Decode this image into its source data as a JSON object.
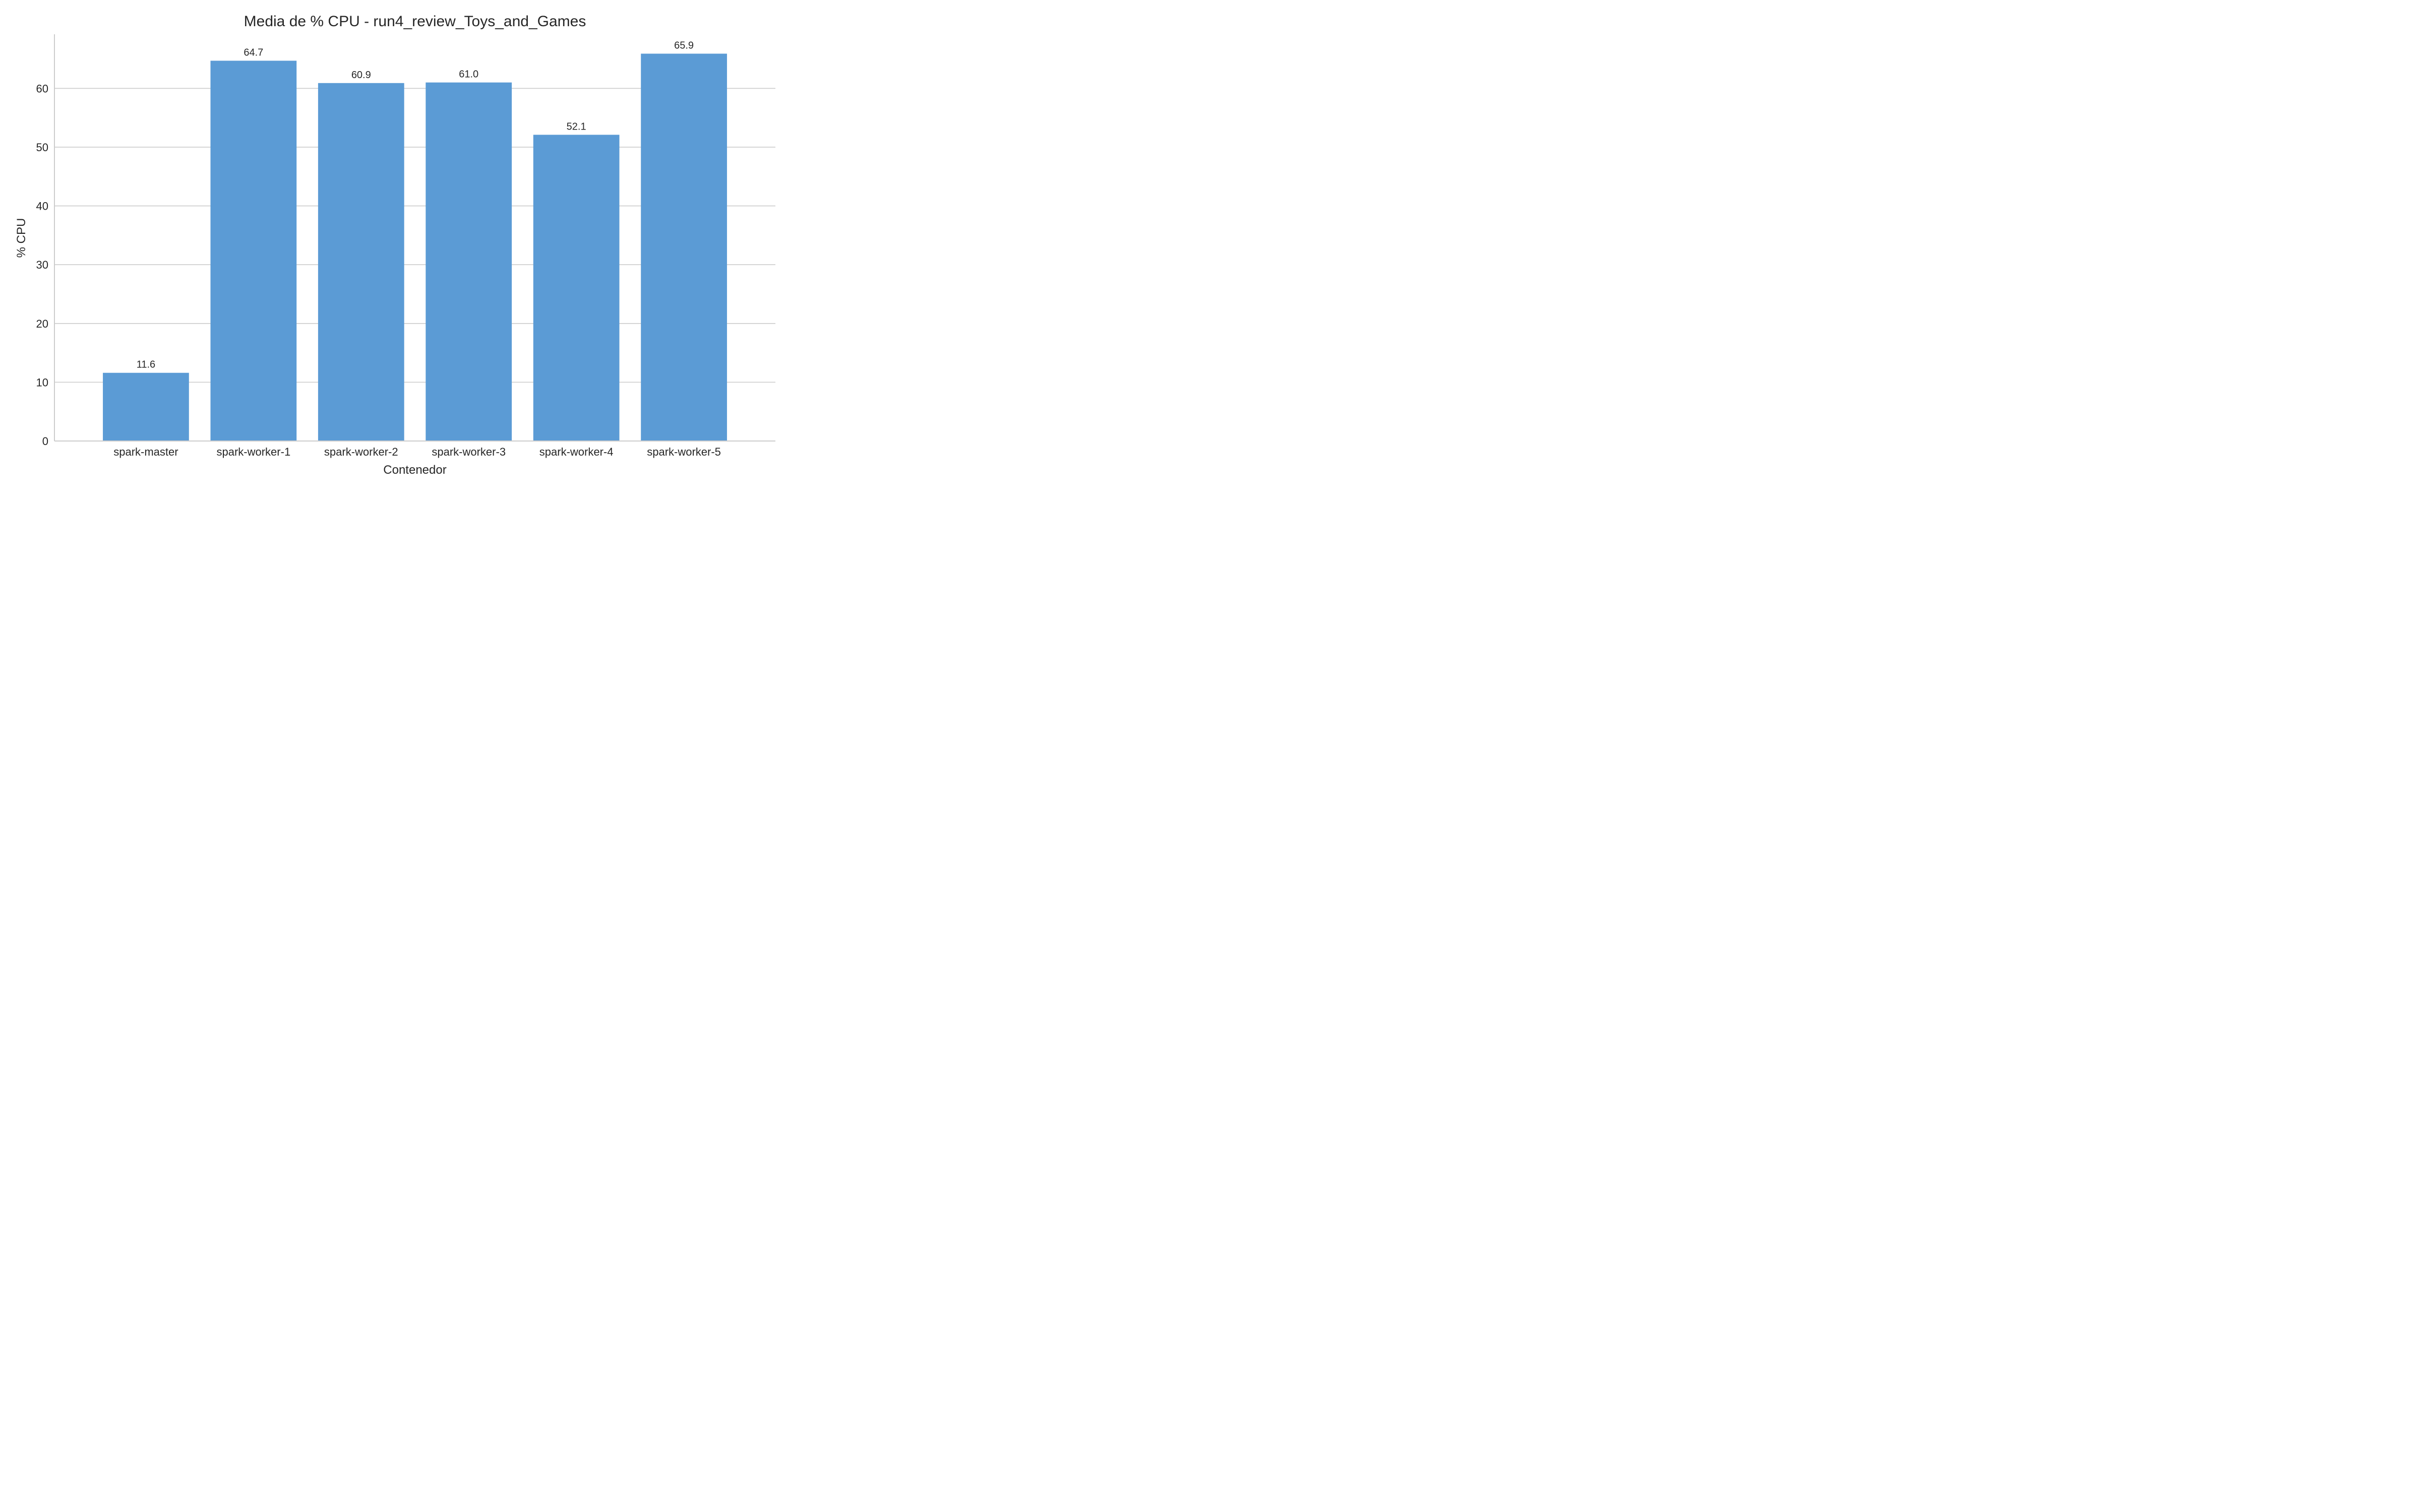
{
  "chart_data": {
    "type": "bar",
    "title": "Media de % CPU - run4_review_Toys_and_Games",
    "xlabel": "Contenedor",
    "ylabel": "% CPU",
    "categories": [
      "spark-master",
      "spark-worker-1",
      "spark-worker-2",
      "spark-worker-3",
      "spark-worker-4",
      "spark-worker-5"
    ],
    "values": [
      11.6,
      64.7,
      60.9,
      61.0,
      52.1,
      65.9
    ],
    "value_labels": [
      "11.6",
      "64.7",
      "60.9",
      "61.0",
      "52.1",
      "65.9"
    ],
    "ylim": [
      0,
      69.2
    ],
    "yticks": [
      0,
      10,
      20,
      30,
      40,
      50,
      60
    ],
    "grid": "horizontal",
    "legend": "none",
    "bar_color": "#5b9bd5",
    "grid_color": "#cccccc",
    "axis_color": "#cccccc"
  }
}
